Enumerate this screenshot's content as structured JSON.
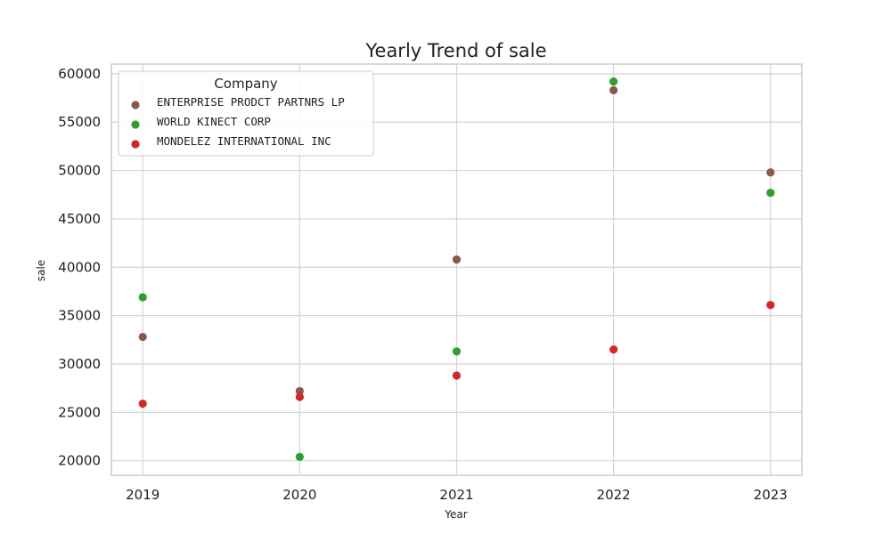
{
  "chart_data": {
    "type": "scatter",
    "title": "Yearly Trend of sale",
    "xlabel": "Year",
    "ylabel": "sale",
    "x": [
      2019,
      2020,
      2021,
      2022,
      2023
    ],
    "xlim": [
      2018.8,
      2023.2
    ],
    "ylim": [
      18500,
      61000
    ],
    "yticks": [
      20000,
      25000,
      30000,
      35000,
      40000,
      45000,
      50000,
      55000,
      60000
    ],
    "grid": true,
    "legend": {
      "title": "Company",
      "placement": "top-left"
    },
    "series": [
      {
        "name": "ENTERPRISE PRODCT PARTNRS LP",
        "color": "#8c564b",
        "values": [
          32800,
          27200,
          40800,
          58300,
          49800
        ]
      },
      {
        "name": "WORLD KINECT CORP",
        "color": "#2ca02c",
        "values": [
          36900,
          20400,
          31300,
          59200,
          47700
        ]
      },
      {
        "name": "MONDELEZ INTERNATIONAL INC",
        "color": "#d62728",
        "values": [
          25900,
          26600,
          28800,
          31500,
          36100
        ]
      }
    ]
  }
}
